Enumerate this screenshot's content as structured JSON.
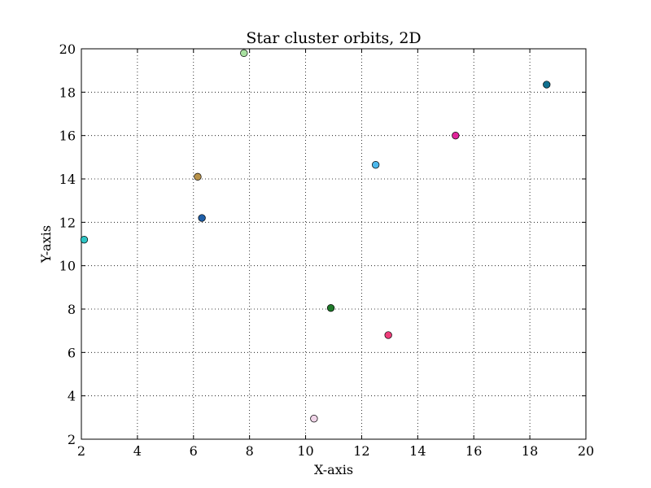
{
  "chart_data": {
    "type": "scatter",
    "title": "Star cluster orbits, 2D",
    "xlabel": "X-axis",
    "ylabel": "Y-axis",
    "xlim": [
      2,
      20
    ],
    "ylim": [
      2,
      20
    ],
    "xticks": [
      2,
      4,
      6,
      8,
      10,
      12,
      14,
      16,
      18,
      20
    ],
    "yticks": [
      2,
      4,
      6,
      8,
      10,
      12,
      14,
      16,
      18,
      20
    ],
    "grid": true,
    "points": [
      {
        "x": 2.1,
        "y": 11.2,
        "color": "#2ec4c4"
      },
      {
        "x": 6.15,
        "y": 14.1,
        "color": "#b8924a"
      },
      {
        "x": 6.3,
        "y": 12.2,
        "color": "#1f5fa8"
      },
      {
        "x": 7.8,
        "y": 19.8,
        "color": "#a8e0a0"
      },
      {
        "x": 10.3,
        "y": 2.95,
        "color": "#f0d4e8"
      },
      {
        "x": 10.9,
        "y": 8.05,
        "color": "#1f7a2a"
      },
      {
        "x": 12.5,
        "y": 14.65,
        "color": "#4db8ec"
      },
      {
        "x": 12.95,
        "y": 6.8,
        "color": "#ef3d7a"
      },
      {
        "x": 15.35,
        "y": 16.0,
        "color": "#e0239a"
      },
      {
        "x": 18.6,
        "y": 18.35,
        "color": "#10708f"
      }
    ]
  }
}
